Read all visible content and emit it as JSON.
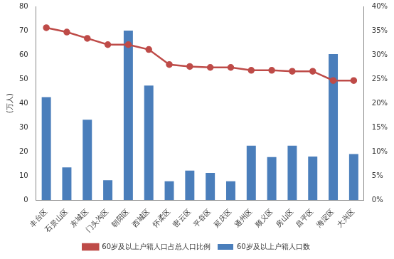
{
  "chart_data": {
    "type": "bar",
    "categories": [
      "丰台区",
      "石景山区",
      "东城区",
      "门头沟区",
      "朝阳区",
      "西城区",
      "怀柔区",
      "密云区",
      "平谷区",
      "延庆区",
      "通州区",
      "顺义区",
      "房山区",
      "昌平区",
      "海淀区",
      "大兴区"
    ],
    "series": [
      {
        "name": "60岁及以上户籍人口数",
        "type": "bar",
        "color": "#4a7ebb",
        "values": [
          42.5,
          13.5,
          33.2,
          8.2,
          70,
          47.3,
          7.8,
          12.2,
          11.2,
          7.8,
          22.5,
          17.8,
          22.5,
          18,
          60.3,
          19
        ]
      },
      {
        "name": "60岁及以上户籍人口占总人口比例",
        "type": "line",
        "color": "#be4b48",
        "axis": "y2",
        "marker": "circle",
        "values": [
          35.6,
          34.7,
          33.4,
          32.1,
          32.1,
          31.1,
          28.0,
          27.6,
          27.4,
          27.4,
          26.8,
          26.8,
          26.6,
          26.6,
          24.7,
          24.7
        ]
      }
    ],
    "y_label": "(万人)",
    "ylim": [
      0,
      80
    ],
    "yticks": [
      0,
      10,
      20,
      30,
      40,
      50,
      60,
      70,
      80
    ],
    "y2lim": [
      0,
      40
    ],
    "y2ticks": [
      {
        "value": 0,
        "label": "0%"
      },
      {
        "value": 5,
        "label": "5%"
      },
      {
        "value": 10,
        "label": "10%"
      },
      {
        "value": 15,
        "label": "15%"
      },
      {
        "value": 20,
        "label": "20%"
      },
      {
        "value": 25,
        "label": "25%"
      },
      {
        "value": 30,
        "label": "30%"
      },
      {
        "value": 35,
        "label": "35%"
      },
      {
        "value": 40,
        "label": "40%"
      }
    ],
    "grid": false,
    "legend": "bottom"
  }
}
